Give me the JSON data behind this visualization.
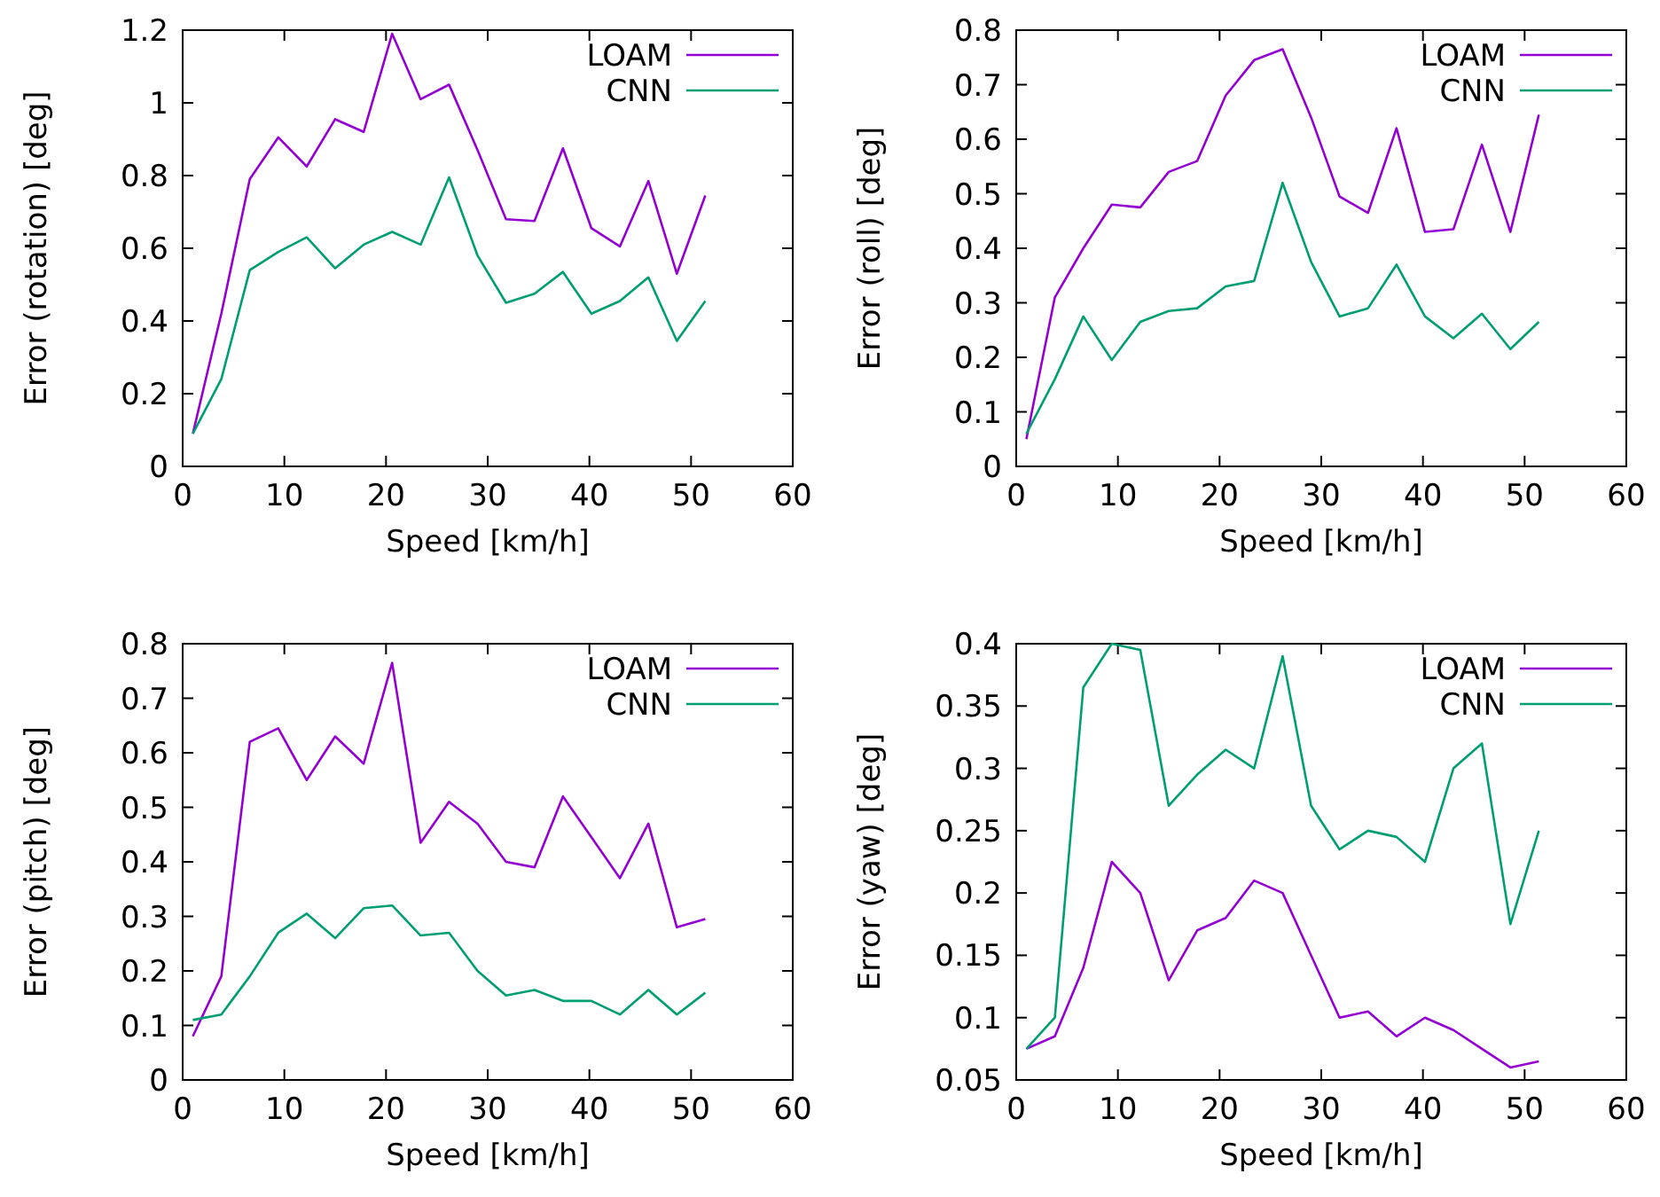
{
  "chart_data": [
    {
      "type": "line",
      "xlabel": "Speed [km/h]",
      "ylabel": "Error (rotation) [deg]",
      "x": [
        1,
        3.8,
        6.6,
        9.4,
        12.2,
        15,
        17.8,
        20.6,
        23.4,
        26.2,
        29,
        31.8,
        34.6,
        37.4,
        40.2,
        43,
        45.8,
        48.6,
        51.4
      ],
      "xlim": [
        0,
        60
      ],
      "xticks": [
        0,
        10,
        20,
        30,
        40,
        50,
        60
      ],
      "ylim": [
        0,
        1.2
      ],
      "yticks": [
        0,
        0.2,
        0.4,
        0.6,
        0.8,
        1,
        1.2
      ],
      "legend": "top right",
      "series": [
        {
          "name": "LOAM",
          "color": "#9400d3",
          "values": [
            0.09,
            0.42,
            0.79,
            0.905,
            0.825,
            0.955,
            0.92,
            1.19,
            1.01,
            1.05,
            0.87,
            0.68,
            0.675,
            0.875,
            0.655,
            0.605,
            0.785,
            0.53,
            0.745
          ]
        },
        {
          "name": "CNN",
          "color": "#009e73",
          "values": [
            0.09,
            0.24,
            0.54,
            0.59,
            0.63,
            0.545,
            0.61,
            0.645,
            0.61,
            0.795,
            0.58,
            0.45,
            0.475,
            0.535,
            0.42,
            0.455,
            0.52,
            0.345,
            0.455
          ]
        }
      ]
    },
    {
      "type": "line",
      "xlabel": "Speed [km/h]",
      "ylabel": "Error (roll) [deg]",
      "x": [
        1,
        3.8,
        6.6,
        9.4,
        12.2,
        15,
        17.8,
        20.6,
        23.4,
        26.2,
        29,
        31.8,
        34.6,
        37.4,
        40.2,
        43,
        45.8,
        48.6,
        51.4
      ],
      "xlim": [
        0,
        60
      ],
      "xticks": [
        0,
        10,
        20,
        30,
        40,
        50,
        60
      ],
      "ylim": [
        0,
        0.8
      ],
      "yticks": [
        0,
        0.1,
        0.2,
        0.3,
        0.4,
        0.5,
        0.6,
        0.7,
        0.8
      ],
      "legend": "top right",
      "series": [
        {
          "name": "LOAM",
          "color": "#9400d3",
          "values": [
            0.05,
            0.31,
            0.4,
            0.48,
            0.475,
            0.54,
            0.56,
            0.68,
            0.745,
            0.765,
            0.64,
            0.495,
            0.465,
            0.62,
            0.43,
            0.435,
            0.59,
            0.43,
            0.645
          ]
        },
        {
          "name": "CNN",
          "color": "#009e73",
          "values": [
            0.06,
            0.16,
            0.275,
            0.195,
            0.265,
            0.285,
            0.29,
            0.33,
            0.34,
            0.52,
            0.375,
            0.275,
            0.29,
            0.37,
            0.275,
            0.235,
            0.28,
            0.215,
            0.265
          ]
        }
      ]
    },
    {
      "type": "line",
      "xlabel": "Speed [km/h]",
      "ylabel": "Error (pitch) [deg]",
      "x": [
        1,
        3.8,
        6.6,
        9.4,
        12.2,
        15,
        17.8,
        20.6,
        23.4,
        26.2,
        29,
        31.8,
        34.6,
        37.4,
        40.2,
        43,
        45.8,
        48.6,
        51.4
      ],
      "xlim": [
        0,
        60
      ],
      "xticks": [
        0,
        10,
        20,
        30,
        40,
        50,
        60
      ],
      "ylim": [
        0,
        0.8
      ],
      "yticks": [
        0,
        0.1,
        0.2,
        0.3,
        0.4,
        0.5,
        0.6,
        0.7,
        0.8
      ],
      "legend": "top right",
      "series": [
        {
          "name": "LOAM",
          "color": "#9400d3",
          "values": [
            0.08,
            0.19,
            0.62,
            0.645,
            0.55,
            0.63,
            0.58,
            0.765,
            0.435,
            0.51,
            0.47,
            0.4,
            0.39,
            0.52,
            0.445,
            0.37,
            0.47,
            0.28,
            0.295
          ]
        },
        {
          "name": "CNN",
          "color": "#009e73",
          "values": [
            0.11,
            0.12,
            0.19,
            0.27,
            0.305,
            0.26,
            0.315,
            0.32,
            0.265,
            0.27,
            0.2,
            0.155,
            0.165,
            0.145,
            0.145,
            0.12,
            0.165,
            0.12,
            0.16
          ]
        }
      ]
    },
    {
      "type": "line",
      "xlabel": "Speed [km/h]",
      "ylabel": "Error (yaw) [deg]",
      "x": [
        1,
        3.8,
        6.6,
        9.4,
        12.2,
        15,
        17.8,
        20.6,
        23.4,
        26.2,
        29,
        31.8,
        34.6,
        37.4,
        40.2,
        43,
        45.8,
        48.6,
        51.4
      ],
      "xlim": [
        0,
        60
      ],
      "xticks": [
        0,
        10,
        20,
        30,
        40,
        50,
        60
      ],
      "ylim": [
        0.05,
        0.4
      ],
      "yticks": [
        0.05,
        0.1,
        0.15,
        0.2,
        0.25,
        0.3,
        0.35,
        0.4
      ],
      "legend": "top right",
      "series": [
        {
          "name": "LOAM",
          "color": "#9400d3",
          "values": [
            0.075,
            0.085,
            0.14,
            0.225,
            0.2,
            0.13,
            0.17,
            0.18,
            0.21,
            0.2,
            0.15,
            0.1,
            0.105,
            0.085,
            0.1,
            0.09,
            0.075,
            0.06,
            0.065
          ]
        },
        {
          "name": "CNN",
          "color": "#009e73",
          "values": [
            0.075,
            0.1,
            0.365,
            0.4,
            0.395,
            0.27,
            0.295,
            0.315,
            0.3,
            0.39,
            0.27,
            0.235,
            0.25,
            0.245,
            0.225,
            0.3,
            0.32,
            0.175,
            0.25
          ]
        }
      ]
    }
  ]
}
